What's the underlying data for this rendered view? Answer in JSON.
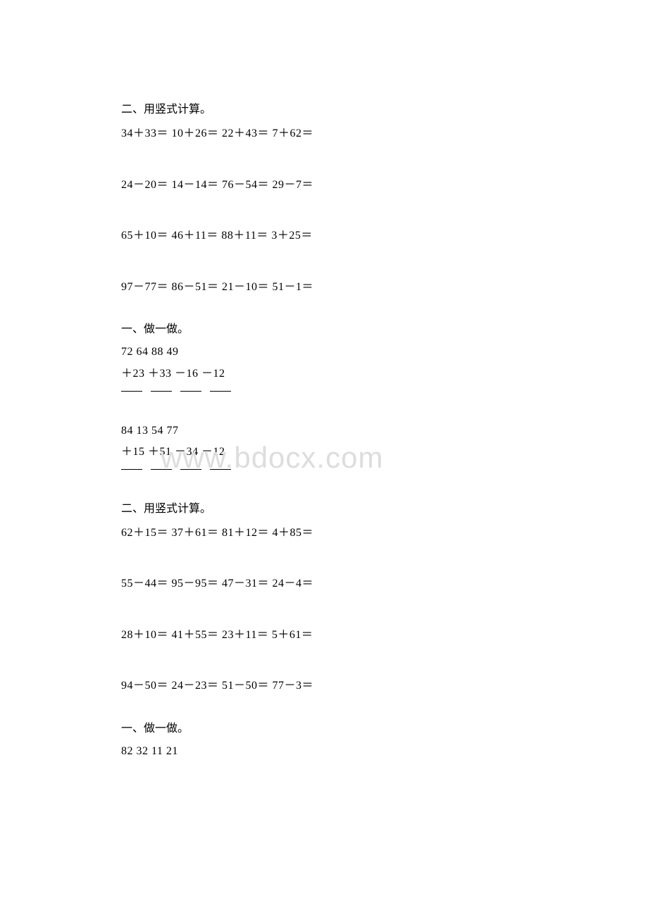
{
  "watermark": "www.bdocx.com",
  "section1": {
    "heading": "二、用竖式计算。",
    "rows": [
      "34＋33＝  10＋26＝  22＋43＝  7＋62＝",
      "24－20＝  14－14＝  76－54＝  29－7＝",
      "65＋10＝  46＋11＝  88＋11＝  3＋25＝",
      "97－77＝  86－51＝  21－10＝  51－1＝"
    ]
  },
  "section2": {
    "heading": "一、做一做。",
    "group1": {
      "nums": " 72   64   88    49",
      "ops": "＋23   ＋33   －16   －12"
    },
    "group2": {
      "nums": " 84   13   54    77",
      "ops": "＋15   ＋51   －34   －12"
    }
  },
  "section3": {
    "heading": "二、用竖式计算。",
    "rows": [
      "62＋15＝  37＋61＝  81＋12＝  4＋85＝",
      "55－44＝  95－95＝  47－31＝  24－4＝",
      "28＋10＝  41＋55＝  23＋11＝  5＋61＝",
      "94－50＝  24－23＝  51－50＝  77－3＝"
    ]
  },
  "section4": {
    "heading": "一、做一做。",
    "nums": " 82   32   11    21"
  }
}
